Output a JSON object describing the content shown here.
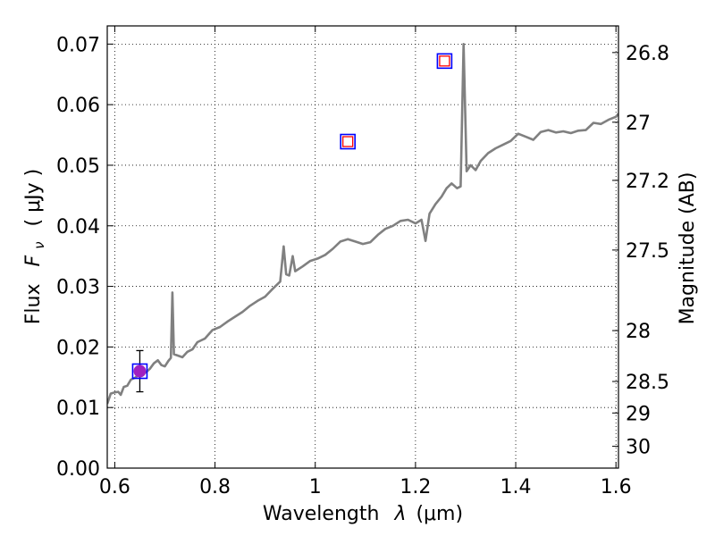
{
  "chart_data": {
    "type": "line",
    "xlabel_main": "Wavelength",
    "xlabel_unit": "(μm)",
    "ylabel_main": "Flux",
    "ylabel_sym": "F",
    "ylabel_sub": "ν",
    "ylabel_unit": "( μJy )",
    "y2label": "Magnitude (AB)",
    "xlim": [
      0.585,
      1.605
    ],
    "ylim": [
      0.0,
      0.073
    ],
    "grid": true,
    "x_ticks": [
      0.6,
      0.8,
      1.0,
      1.2,
      1.4,
      1.6
    ],
    "x_tick_labels": [
      "0.6",
      "0.8",
      "1",
      "1.2",
      "1.4",
      "1.6"
    ],
    "y_ticks": [
      0.0,
      0.01,
      0.02,
      0.03,
      0.04,
      0.05,
      0.06,
      0.07
    ],
    "y_tick_labels": [
      "0.00",
      "0.01",
      "0.02",
      "0.03",
      "0.04",
      "0.05",
      "0.06",
      "0.07"
    ],
    "y2_ticks": [
      {
        "label": "26.8",
        "flux": 0.0686
      },
      {
        "label": "27",
        "flux": 0.0571
      },
      {
        "label": "27.2",
        "flux": 0.0475
      },
      {
        "label": "27.5",
        "flux": 0.036
      },
      {
        "label": "28",
        "flux": 0.0227
      },
      {
        "label": "28.5",
        "flux": 0.0143
      },
      {
        "label": "29",
        "flux": 0.0091
      },
      {
        "label": "30",
        "flux": 0.0036
      }
    ],
    "series": [
      {
        "type": "line",
        "color": "#808080",
        "points": [
          [
            0.585,
            0.0106
          ],
          [
            0.592,
            0.0123
          ],
          [
            0.6,
            0.0125
          ],
          [
            0.607,
            0.0126
          ],
          [
            0.612,
            0.0121
          ],
          [
            0.618,
            0.0134
          ],
          [
            0.625,
            0.0136
          ],
          [
            0.632,
            0.0146
          ],
          [
            0.64,
            0.0149
          ],
          [
            0.648,
            0.0154
          ],
          [
            0.655,
            0.0156
          ],
          [
            0.662,
            0.0158
          ],
          [
            0.67,
            0.0164
          ],
          [
            0.678,
            0.0173
          ],
          [
            0.686,
            0.0178
          ],
          [
            0.693,
            0.017
          ],
          [
            0.7,
            0.0168
          ],
          [
            0.707,
            0.0177
          ],
          [
            0.712,
            0.0182
          ],
          [
            0.715,
            0.029
          ],
          [
            0.718,
            0.0188
          ],
          [
            0.725,
            0.0186
          ],
          [
            0.735,
            0.0183
          ],
          [
            0.745,
            0.0192
          ],
          [
            0.755,
            0.0196
          ],
          [
            0.765,
            0.0208
          ],
          [
            0.78,
            0.0214
          ],
          [
            0.795,
            0.0228
          ],
          [
            0.81,
            0.0233
          ],
          [
            0.825,
            0.0242
          ],
          [
            0.84,
            0.025
          ],
          [
            0.855,
            0.0258
          ],
          [
            0.87,
            0.0268
          ],
          [
            0.885,
            0.0276
          ],
          [
            0.9,
            0.0283
          ],
          [
            0.915,
            0.0296
          ],
          [
            0.93,
            0.0308
          ],
          [
            0.937,
            0.0366
          ],
          [
            0.942,
            0.032
          ],
          [
            0.948,
            0.0318
          ],
          [
            0.955,
            0.035
          ],
          [
            0.96,
            0.0325
          ],
          [
            0.975,
            0.0333
          ],
          [
            0.99,
            0.0342
          ],
          [
            1.005,
            0.0346
          ],
          [
            1.02,
            0.0352
          ],
          [
            1.035,
            0.0362
          ],
          [
            1.05,
            0.0374
          ],
          [
            1.065,
            0.0378
          ],
          [
            1.08,
            0.0374
          ],
          [
            1.095,
            0.037
          ],
          [
            1.11,
            0.0373
          ],
          [
            1.125,
            0.0385
          ],
          [
            1.14,
            0.0395
          ],
          [
            1.155,
            0.04
          ],
          [
            1.17,
            0.0408
          ],
          [
            1.185,
            0.041
          ],
          [
            1.2,
            0.0404
          ],
          [
            1.212,
            0.041
          ],
          [
            1.22,
            0.0375
          ],
          [
            1.228,
            0.042
          ],
          [
            1.24,
            0.0436
          ],
          [
            1.252,
            0.0448
          ],
          [
            1.262,
            0.0462
          ],
          [
            1.272,
            0.047
          ],
          [
            1.283,
            0.0462
          ],
          [
            1.29,
            0.0465
          ],
          [
            1.296,
            0.07
          ],
          [
            1.302,
            0.049
          ],
          [
            1.31,
            0.05
          ],
          [
            1.32,
            0.0492
          ],
          [
            1.33,
            0.0507
          ],
          [
            1.345,
            0.052
          ],
          [
            1.36,
            0.0528
          ],
          [
            1.375,
            0.0534
          ],
          [
            1.39,
            0.054
          ],
          [
            1.405,
            0.0552
          ],
          [
            1.42,
            0.0547
          ],
          [
            1.435,
            0.0542
          ],
          [
            1.45,
            0.0555
          ],
          [
            1.465,
            0.0558
          ],
          [
            1.48,
            0.0554
          ],
          [
            1.495,
            0.0556
          ],
          [
            1.51,
            0.0553
          ],
          [
            1.525,
            0.0557
          ],
          [
            1.54,
            0.0558
          ],
          [
            1.555,
            0.057
          ],
          [
            1.57,
            0.0568
          ],
          [
            1.585,
            0.0575
          ],
          [
            1.6,
            0.058
          ],
          [
            1.605,
            0.0585
          ]
        ]
      }
    ],
    "photometry": [
      {
        "x": 0.65,
        "y": 0.016,
        "yerr": 0.0034,
        "marker": "square",
        "fill": "#a020c0",
        "circle": true
      },
      {
        "x": 1.065,
        "y": 0.0539,
        "marker": "square",
        "fill": "none"
      },
      {
        "x": 1.258,
        "y": 0.0672,
        "marker": "square",
        "fill": "none"
      }
    ],
    "colors": {
      "spectrum": "#808080",
      "box_outer": "#0000ff",
      "box_inner": "#ff0000",
      "point_fill": "#a020c0",
      "errorbar": "#000000"
    }
  }
}
